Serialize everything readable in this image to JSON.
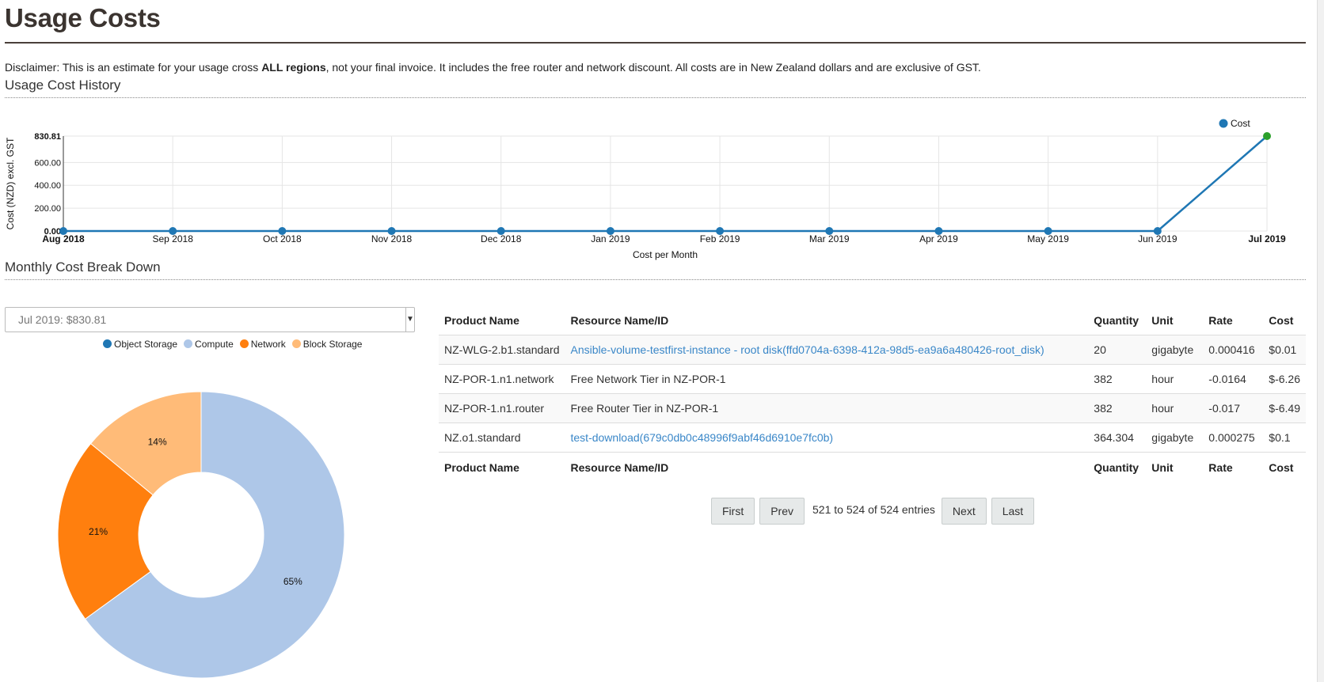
{
  "page": {
    "title": "Usage Costs",
    "disclaimer_prefix": "Disclaimer: This is an estimate for your usage cross ",
    "disclaimer_bold": "ALL regions",
    "disclaimer_suffix": ", not your final invoice. It includes the free router and network discount. All costs are in New Zealand dollars and are exclusive of GST."
  },
  "history": {
    "section_title": "Usage Cost History"
  },
  "breakdown": {
    "section_title": "Monthly Cost Break Down",
    "selected_month": "Jul 2019: $830.81"
  },
  "chart_data": [
    {
      "type": "line",
      "title": "",
      "xlabel": "Cost per Month",
      "ylabel": "Cost (NZD) excl. GST",
      "categories": [
        "Aug 2018",
        "Sep 2018",
        "Oct 2018",
        "Nov 2018",
        "Dec 2018",
        "Jan 2019",
        "Feb 2019",
        "Mar 2019",
        "Apr 2019",
        "May 2019",
        "Jun 2019",
        "Jul 2019"
      ],
      "series": [
        {
          "name": "Cost",
          "values": [
            0,
            0,
            0,
            0,
            0,
            0,
            0,
            0,
            0,
            0,
            0,
            830.81
          ]
        }
      ],
      "ylim": [
        0,
        830.81
      ],
      "y_ticks": [
        "0.00",
        "200.00",
        "400.00",
        "600.00",
        "830.81"
      ],
      "y_tick_values": [
        0,
        200,
        400,
        600,
        830.81
      ],
      "grid": true,
      "legend_position": "top-right",
      "colors": {
        "line": "#1f77b4",
        "highlight": "#2ca02c"
      }
    },
    {
      "type": "pie",
      "title": "",
      "categories": [
        "Object Storage",
        "Compute",
        "Network",
        "Block Storage"
      ],
      "values": [
        0,
        65,
        21,
        14
      ],
      "labels": [
        "0%",
        "65%",
        "21%",
        "14%"
      ],
      "colors": [
        "#1f77b4",
        "#aec7e8",
        "#ff7f0e",
        "#ffbb78"
      ],
      "legend_position": "top"
    }
  ],
  "table": {
    "headers": [
      "Product Name",
      "Resource Name/ID",
      "Quantity",
      "Unit",
      "Rate",
      "Cost"
    ],
    "rows": [
      {
        "product": "NZ-WLG-2.b1.standard",
        "resource": "Ansible-volume-testfirst-instance - root disk(ffd0704a-6398-412a-98d5-ea9a6a480426-root_disk)",
        "resource_link": true,
        "quantity": "20",
        "unit": "gigabyte",
        "rate": "0.000416",
        "cost": "$0.01"
      },
      {
        "product": "NZ-POR-1.n1.network",
        "resource": "Free Network Tier in NZ-POR-1",
        "resource_link": false,
        "quantity": "382",
        "unit": "hour",
        "rate": "-0.0164",
        "cost": "$-6.26"
      },
      {
        "product": "NZ-POR-1.n1.router",
        "resource": "Free Router Tier in NZ-POR-1",
        "resource_link": false,
        "quantity": "382",
        "unit": "hour",
        "rate": "-0.017",
        "cost": "$-6.49"
      },
      {
        "product": "NZ.o1.standard",
        "resource": "test-download(679c0db0c48996f9abf46d6910e7fc0b)",
        "resource_link": true,
        "quantity": "364.304",
        "unit": "gigabyte",
        "rate": "0.000275",
        "cost": "$0.1"
      }
    ]
  },
  "pager": {
    "first": "First",
    "prev": "Prev",
    "info": "521 to 524 of 524 entries",
    "next": "Next",
    "last": "Last"
  }
}
